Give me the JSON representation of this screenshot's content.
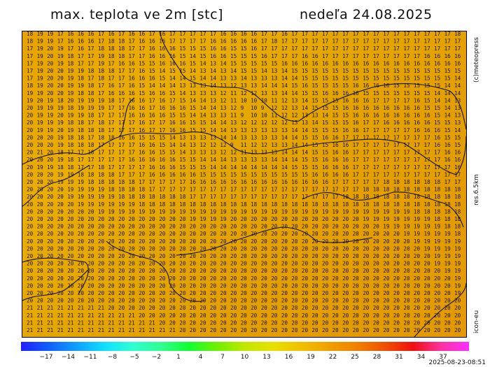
{
  "header": {
    "title": "max. teplota ve 2m [stc]",
    "date": "nedeľa 24.08.2025"
  },
  "side_labels": {
    "credit": "(c)meteopress",
    "resolution": "res.6.5km",
    "model": "icon-eu"
  },
  "legend": {
    "ticks": [
      "−17",
      "−14",
      "−11",
      "−8",
      "−5",
      "−2",
      "1",
      "4",
      "7",
      "10",
      "13",
      "16",
      "19",
      "22",
      "25",
      "28",
      "31",
      "34",
      "37"
    ],
    "colors": [
      "#2020ff",
      "#1060ff",
      "#10a0ff",
      "#10e0ff",
      "#30ffd0",
      "#30ff90",
      "#10ff30",
      "#70f000",
      "#c0e800",
      "#e8e000",
      "#f0c000",
      "#f0a000",
      "#f08000",
      "#f05000",
      "#f01010",
      "#ff30a0",
      "#ff30ff"
    ]
  },
  "timestamp": "2025-08-23-08:51",
  "grid": {
    "values": [
      "18 19 19 17 16 16 16 17 16 17 16 16 17 16 17 17 17 17 17 16 16 16 16 17 17 16 17 17 17 17 17 17 17 17 17 17 17 17 17 17 17 17 18",
      "18 19 19 17 16 16 16 17 18 18 17 16 16 16 17 17 17 17 16 16 16 16 16 17 18 17 17 17 17 17 17 17 17 17 17 17 17 17 17 17 17 17 17",
      "17 19 20 19 17 16 17 18 18 18 17 17 16 16 16 15 15 15 16 16 15 15 16 17 17 17 17 17 17 17 17 17 17 17 17 17 17 17 17 17 17 17 17",
      "17 19 20 19 18 17 17 19 18 18 17 17 16 16 16 15 14 15 16 16 15 15 15 16 17 17 17 16 16 17 17 17 17 17 17 17 17 17 17 16 16 16 16",
      "17 19 20 19 18 17 17 19 17 16 16 15 15 16 16 16 15 14 13 14 15 15 15 15 15 16 16 16 16 16 16 16 16 16 16 16 16 16 16 16 16 16 16",
      "17 19 20 20 19 19 18 18 18 17 17 16 15 14 15 15 14 13 14 13 14 15 15 14 13 14 15 15 15 15 15 15 15 15 15 15 15 15 15 15 15 15 15",
      "17 19 20 20 19 18 17 18 17 17 16 16 16 15 14 14 15 14 14 13 13 14 13 13 13 14 14 15 15 15 15 15 15 15 15 15 15 15 15 15 15 15 14",
      "18 19 20 20 19 19 18 17 16 17 16 15 14 14 14 13 13 13 14 13 12 13 13 14 14 14 15 16 15 15 15 15 16 16 16 16 15 15 15 15 15 14 14",
      "19 19 20 20 19 18 18 17 16 16 16 15 16 16 15 14 13 13 13 12 11 12 12 13 13 14 14 15 15 16 16 16 16 15 15 15 15 15 15 15 14 14 14",
      "19 20 19 18 20 19 19 19 18 17 16 16 17 16 17 15 14 14 13 12 11 10 10 10 11 12 13 14 15 15 15 16 16 16 17 17 17 17 16 15 14 14 13",
      "20 19 19 19 18 19 19 19 17 17 16 16 17 16 16 16 15 14 14 13 12 9 10 9 12 12 13 14 15 15 15 16 16 16 16 16 16 16 16 15 15 14 13",
      "20 19 19 20 19 19 18 17 17 17 16 16 16 16 15 15 14 14 13 13 11 9 10 10 11 12 12 13 13 14 15 15 16 16 16 16 16 16 16 16 15 14 13",
      "20 19 19 19 18 18 17 18 17 17 17 16 17 17 16 16 15 15 14 14 13 12 12 12 12 12 13 13 14 15 15 15 16 17 17 16 16 16 16 16 15 15 13",
      "20 19 19 20 19 18 18 18 17 17 17 16 17 17 16 16 15 15 14 14 13 13 13 13 13 13 14 14 15 15 15 16 16 17 17 17 17 17 16 16 16 15 14",
      "20 20 20 19 18 18 17 18 18 16 16 15 15 15 14 13 13 13 13 14 14 13 13 13 13 14 14 15 15 16 16 17 17 17 17 17 17 17 17 17 16 15 15",
      "20 20 20 19 18 18 18 17 17 17 17 16 16 15 14 14 13 12 12 12 9 11 12 12 13 13 14 14 15 15 16 16 17 17 17 17 17 17 17 17 16 16 15",
      "20 21 20 18 17 17 18 17 17 17 17 16 16 15 15 14 13 13 13 12 12 11 13 13 13 14 14 14 15 15 16 16 17 17 17 17 17 17 17 17 17 16 16",
      "20 20 20 19 18 17 17 17 17 17 16 16 16 16 16 15 15 14 14 14 13 13 13 13 14 14 14 15 15 16 16 16 17 17 17 17 17 17 17 17 17 16 16",
      "20 19 19 18 18 17 17 18 17 17 17 17 16 16 16 15 15 15 14 14 14 14 14 14 14 14 15 15 15 16 16 16 17 17 17 17 17 17 17 17 17 17 16",
      "20 20 20 19 19 18 18 18 18 17 17 17 16 16 16 16 16 15 15 15 15 15 15 15 15 15 15 15 16 16 16 16 17 17 17 17 17 17 17 17 17 17 17",
      "20 20 20 19 19 19 18 18 18 18 18 17 17 17 17 17 16 16 16 16 16 16 16 16 16 16 16 16 16 16 17 17 17 17 17 18 18 18 18 18 18 17 17",
      "20 20 20 20 19 19 19 19 18 18 18 18 17 17 17 17 17 17 17 17 17 17 17 17 17 17 17 17 17 17 17 17 17 18 18 18 18 18 18 18 18 18 18",
      "20 20 20 20 19 19 19 19 19 18 18 18 18 18 18 18 17 17 17 17 17 17 17 17 17 17 17 17 17 17 17 18 18 18 18 18 18 18 18 18 18 18 18",
      "20 20 20 20 20 19 19 19 19 19 19 18 18 18 18 18 18 18 18 18 18 18 18 18 18 18 18 18 18 18 18 18 18 18 18 18 18 18 18 18 18 18 18",
      "20 20 20 20 20 20 20 19 19 19 19 19 19 19 19 19 19 19 19 19 19 19 19 19 19 19 19 19 19 19 19 19 19 19 19 19 19 19 18 18 18 18 18",
      "20 20 20 20 20 20 20 20 20 20 20 20 20 20 20 20 19 19 19 19 20 20 20 20 20 20 20 20 20 20 20 20 20 19 19 19 19 19 19 19 18 18 18",
      "20 20 20 20 20 20 20 20 20 20 20 20 20 20 20 20 20 20 20 20 20 20 20 20 20 20 20 20 20 20 20 20 20 20 20 19 19 19 19 19 19 18 18",
      "20 20 20 20 20 20 20 20 20 20 20 20 20 20 20 20 20 20 20 20 20 20 20 20 20 20 20 20 20 20 20 20 20 20 20 20 20 19 19 19 19 19 18",
      "20 20 20 20 20 20 20 20 20 20 20 20 20 20 20 20 20 20 20 20 20 20 20 20 20 20 20 20 20 20 20 20 20 20 20 20 20 20 19 19 19 19 19",
      "20 20 20 20 20 20 20 20 20 20 20 20 20 20 20 20 20 20 20 20 20 20 20 20 20 20 20 20 20 20 20 20 20 20 20 20 20 20 20 19 19 19 19",
      "20 20 20 20 20 20 20 20 20 20 20 20 20 20 20 20 20 20 20 20 20 20 20 20 20 20 20 20 20 20 20 20 20 20 20 20 20 20 20 20 19 19 19",
      "20 20 20 20 20 20 20 20 20 20 20 20 20 20 20 20 20 20 20 20 20 20 20 20 20 20 20 20 20 20 20 20 20 20 20 20 20 20 20 20 19 19 19",
      "20 20 20 20 20 20 20 20 20 20 20 20 20 20 20 20 20 20 20 20 20 20 20 20 20 20 20 20 20 20 20 20 20 20 20 20 20 20 20 20 20 19 19",
      "20 20 20 20 20 20 20 20 20 20 20 20 20 20 20 20 20 20 20 20 20 20 20 20 20 20 20 20 20 20 20 20 20 20 20 20 20 20 20 20 20 20 19",
      "20 20 20 20 20 20 20 20 20 20 20 20 20 20 20 20 20 20 20 20 20 20 20 20 20 20 20 20 20 20 20 20 20 20 20 20 20 20 20 20 20 20 19",
      "20 20 20 20 20 20 20 20 20 20 20 20 20 20 20 20 20 20 20 20 20 20 20 20 20 20 20 20 20 20 20 20 20 20 20 20 20 20 20 20 20 20 19",
      "20 20 20 20 20 20 20 20 20 20 20 20 20 20 20 20 20 20 20 20 20 20 20 20 20 20 20 20 20 20 20 20 20 20 20 20 20 20 20 20 20 20 20",
      "21 21 21 21 21 21 21 21 20 20 20 20 20 20 20 20 20 20 20 20 20 20 20 20 20 20 20 20 20 20 20 20 20 20 20 20 20 20 20 20 20 20 20",
      "21 21 21 21 21 21 21 21 21 21 21 20 20 20 20 20 20 20 20 20 20 20 20 20 20 20 20 20 20 20 20 20 20 20 20 20 20 20 20 20 20 20 20",
      "21 21 21 21 21 21 21 21 21 21 21 21 21 20 20 20 20 20 20 20 20 20 20 20 20 20 20 20 20 20 20 20 20 20 20 20 20 20 20 20 20 20 20",
      "21 21 21 21 21 21 21 21 21 21 21 21 21 21 21 20 20 20 20 20 20 20 20 20 20 20 20 20 20 20 20 20 20 20 20 20 20 20 20 20 20 20 20"
    ]
  }
}
